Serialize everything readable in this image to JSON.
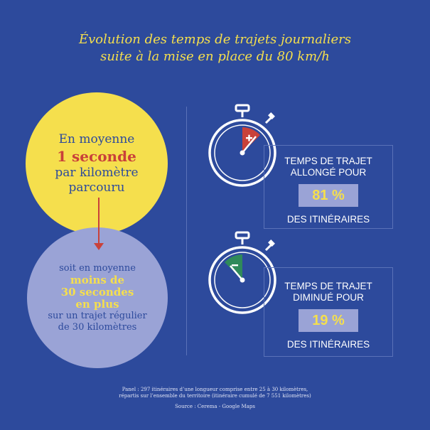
{
  "title": {
    "line1": "Évolution des temps de trajets journaliers",
    "line2": "suite à la mise en place du 80 km/h"
  },
  "left": {
    "yellow_circle": {
      "line1": "En moyenne",
      "highlight": "1 seconde",
      "line2": "par kilomètre",
      "line3": "parcouru"
    },
    "blue_circle": {
      "line1": "soit en moyenne",
      "highlight1": "moins de",
      "highlight2": "30 secondes",
      "highlight3": "en plus",
      "line2": "sur un trajet régulier",
      "line3": "de 30 kilomètres"
    }
  },
  "panels": [
    {
      "label1": "TEMPS DE TRAJET",
      "label2": "ALLONGÉ POUR",
      "percent": "81 %",
      "sub": "DES ITINÉRAIRES",
      "icon": "plus-icon",
      "indicator_color": "#c9413a"
    },
    {
      "label1": "TEMPS DE TRAJET",
      "label2": "DIMINUÉ POUR",
      "percent": "19 %",
      "sub": "DES ITINÉRAIRES",
      "icon": "minus-icon",
      "indicator_color": "#2f8a5a"
    }
  ],
  "footnote": {
    "line1": "Panel : 297 itinéraires d’une longueur comprise entre 25 à 30 kilomètres,",
    "line2": "répartis sur l’ensemble du territoire (itinéraire cumulé de 7 551 kilomètres)",
    "source": "Source : Cerema - Google Maps"
  },
  "colors": {
    "background": "#2d4a9c",
    "yellow": "#f5df4d",
    "red": "#c9413a",
    "lavender": "#9aa3d6",
    "green": "#2f8a5a"
  }
}
